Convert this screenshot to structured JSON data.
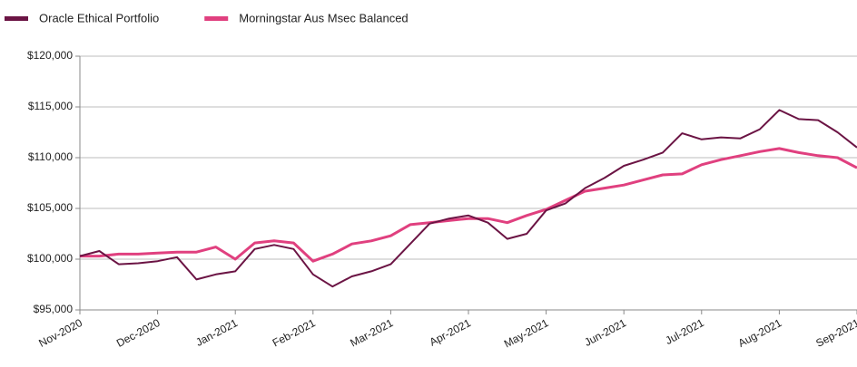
{
  "chart_data": {
    "type": "line",
    "x": [
      0,
      0.25,
      0.5,
      0.75,
      1,
      1.25,
      1.5,
      1.75,
      2,
      2.25,
      2.5,
      2.75,
      3,
      3.25,
      3.5,
      3.75,
      4,
      4.25,
      4.5,
      4.75,
      5,
      5.25,
      5.5,
      5.75,
      6,
      6.25,
      6.5,
      6.75,
      7,
      7.25,
      7.5,
      7.75,
      8,
      8.25,
      8.5,
      8.75,
      9,
      9.25,
      9.5,
      9.75,
      10
    ],
    "xlim": [
      0,
      10
    ],
    "xticks": [
      {
        "value": 0,
        "label": "Nov-2020"
      },
      {
        "value": 1,
        "label": "Dec-2020"
      },
      {
        "value": 2,
        "label": "Jan-2021"
      },
      {
        "value": 3,
        "label": "Feb-2021"
      },
      {
        "value": 4,
        "label": "Mar-2021"
      },
      {
        "value": 5,
        "label": "Apr-2021"
      },
      {
        "value": 6,
        "label": "May-2021"
      },
      {
        "value": 7,
        "label": "Jun-2021"
      },
      {
        "value": 8,
        "label": "Jul-2021"
      },
      {
        "value": 9,
        "label": "Aug-2021"
      },
      {
        "value": 10,
        "label": "Sep-2021"
      }
    ],
    "ylim": [
      95000,
      120000
    ],
    "yticks": [
      {
        "value": 95000,
        "label": "$95,000"
      },
      {
        "value": 100000,
        "label": "$100,000"
      },
      {
        "value": 105000,
        "label": "$105,000"
      },
      {
        "value": 110000,
        "label": "$110,000"
      },
      {
        "value": 115000,
        "label": "$115,000"
      },
      {
        "value": 120000,
        "label": "$120,000"
      }
    ],
    "grid": true,
    "legend": "top-left",
    "series": [
      {
        "name": "Oracle Ethical Portfolio",
        "color": "#6b1444",
        "values": [
          100300,
          100800,
          99500,
          99600,
          99800,
          100200,
          98000,
          98500,
          98800,
          101000,
          101400,
          101000,
          98500,
          97300,
          98300,
          98800,
          99500,
          101500,
          103500,
          104000,
          104300,
          103600,
          102000,
          102500,
          104800,
          105500,
          107000,
          108000,
          109200,
          109800,
          110500,
          112400,
          111800,
          112000,
          111900,
          112800,
          114700,
          113800,
          113700,
          112500,
          111000
        ]
      },
      {
        "name": "Morningstar Aus Msec Balanced",
        "color": "#e0407f",
        "values": [
          100300,
          100300,
          100500,
          100500,
          100600,
          100700,
          100700,
          101200,
          100000,
          101600,
          101800,
          101600,
          99800,
          100500,
          101500,
          101800,
          102300,
          103400,
          103600,
          103800,
          104000,
          104000,
          103600,
          104300,
          104900,
          105800,
          106700,
          107000,
          107300,
          107800,
          108300,
          108400,
          109300,
          109800,
          110200,
          110600,
          110900,
          110500,
          110200,
          110000,
          109000
        ]
      }
    ]
  }
}
